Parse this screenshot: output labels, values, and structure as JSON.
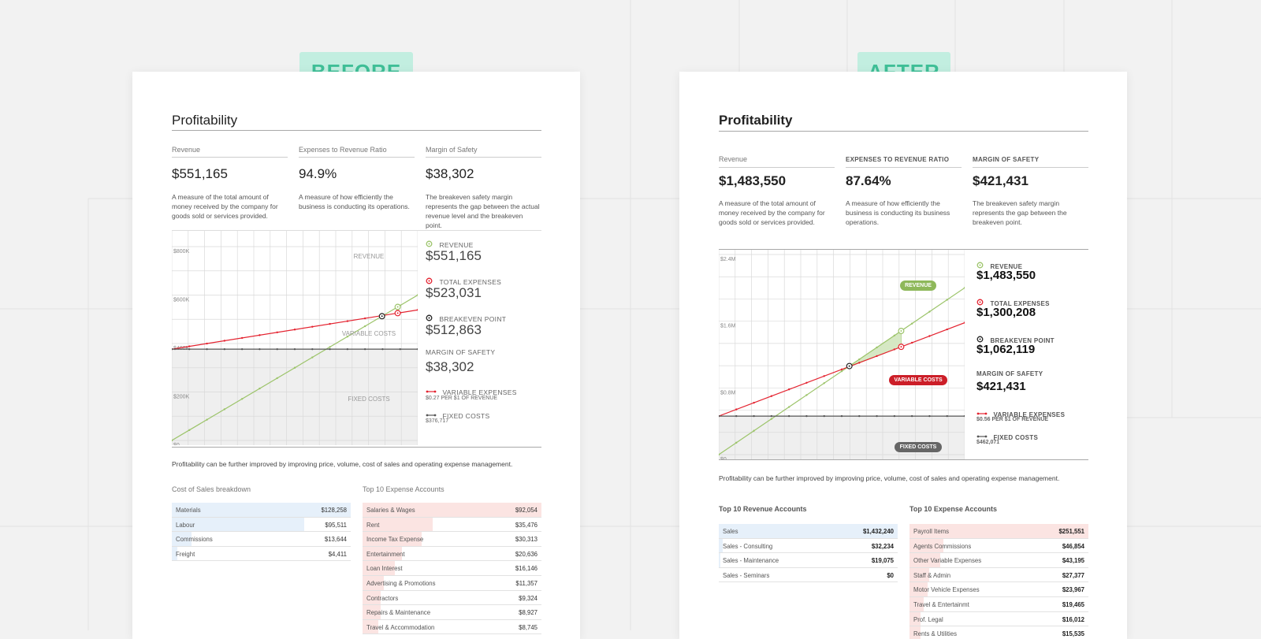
{
  "labels": {
    "before": "BEFORE",
    "after": "AFTER"
  },
  "before": {
    "title": "Profitability",
    "metrics": [
      {
        "head": "Revenue",
        "value": "$551,165",
        "desc": "A measure of the total amount of money received by the company for goods sold or services provided."
      },
      {
        "head": "Expenses to Revenue Ratio",
        "value": "94.9%",
        "desc": "A measure of how efficiently the business is conducting its operations."
      },
      {
        "head": "Margin of Safety",
        "value": "$38,302",
        "desc": "The breakeven safety margin represents the gap between the actual revenue level and the breakeven point."
      }
    ],
    "legend": {
      "revenue_label": "REVENUE",
      "revenue_value": "$551,165",
      "expenses_label": "TOTAL EXPENSES",
      "expenses_value": "$523,031",
      "breakeven_label": "BREAKEVEN POINT",
      "breakeven_value": "$512,863",
      "margin_label": "MARGIN OF SAFETY",
      "margin_value": "$38,302",
      "variable_label": "VARIABLE EXPENSES",
      "variable_sub": "$0.27 PER $1 OF REVENUE",
      "fixed_label": "FIXED COSTS",
      "fixed_sub": "$376,717"
    },
    "note": "Profitability can be further improved by improving price, volume, cost of sales and operating expense management.",
    "table_left": {
      "title": "Cost of Sales breakdown",
      "rows": [
        {
          "label": "Materials",
          "amount": "$128,258",
          "share": 1.0
        },
        {
          "label": "Labour",
          "amount": "$95,511",
          "share": 0.74
        },
        {
          "label": "Commissions",
          "amount": "$13,644",
          "share": 0.11
        },
        {
          "label": "Freight",
          "amount": "$4,411",
          "share": 0.03
        }
      ]
    },
    "table_right": {
      "title": "Top 10 Expense Accounts",
      "rows": [
        {
          "label": "Salaries & Wages",
          "amount": "$92,054",
          "share": 1.0
        },
        {
          "label": "Rent",
          "amount": "$35,476",
          "share": 0.39
        },
        {
          "label": "Income Tax Expense",
          "amount": "$30,313",
          "share": 0.33
        },
        {
          "label": "Entertainment",
          "amount": "$20,636",
          "share": 0.22
        },
        {
          "label": "Loan Interest",
          "amount": "$16,146",
          "share": 0.18
        },
        {
          "label": "Advertising & Promotions",
          "amount": "$11,357",
          "share": 0.12
        },
        {
          "label": "Contractors",
          "amount": "$9,324",
          "share": 0.1
        },
        {
          "label": "Repairs & Maintenance",
          "amount": "$8,927",
          "share": 0.1
        },
        {
          "label": "Travel & Accommodation",
          "amount": "$8,745",
          "share": 0.09
        }
      ]
    }
  },
  "after": {
    "title": "Profitability",
    "metrics": [
      {
        "head": "Revenue",
        "value": "$1,483,550",
        "desc": "A measure of the total amount of money received by the company for goods sold or services provided."
      },
      {
        "head": "EXPENSES TO REVENUE RATIO",
        "value": "87.64%",
        "desc": "A measure of how efficiently the business is conducting its business operations."
      },
      {
        "head": "MARGIN OF SAFETY",
        "value": "$421,431",
        "desc": "The breakeven safety margin represents the gap between the breakeven point."
      }
    ],
    "legend": {
      "revenue_label": "REVENUE",
      "revenue_value": "$1,483,550",
      "expenses_label": "TOTAL EXPENSES",
      "expenses_value": "$1,300,208",
      "breakeven_label": "BREAKEVEN POINT",
      "breakeven_value": "$1,062,119",
      "margin_label": "MARGIN OF SAFETY",
      "margin_value": "$421,431",
      "variable_label": "VARIABLE EXPENSES",
      "variable_sub": "$0.56 PER $1 OF REVENUE",
      "fixed_label": "FIXED COSTS",
      "fixed_sub": "$462,071"
    },
    "note": "Profitability can be further improved by improving price, volume, cost of sales and operating expense management.",
    "table_left": {
      "title": "Top 10 Revenue Accounts",
      "rows": [
        {
          "label": "Sales",
          "amount": "$1,432,240",
          "share": 1.0
        },
        {
          "label": "Sales - Consulting",
          "amount": "$32,234",
          "share": 0.02
        },
        {
          "label": "Sales - Maintenance",
          "amount": "$19,075",
          "share": 0.01
        },
        {
          "label": "Sales - Seminars",
          "amount": "$0",
          "share": 0.0
        }
      ]
    },
    "table_right": {
      "title": "Top 10 Expense Accounts",
      "rows": [
        {
          "label": "Payroll Items",
          "amount": "$251,551",
          "share": 1.0
        },
        {
          "label": "Agents Commissions",
          "amount": "$46,854",
          "share": 0.19
        },
        {
          "label": "Other Variable Expenses",
          "amount": "$43,195",
          "share": 0.17
        },
        {
          "label": "Staff & Admin",
          "amount": "$27,377",
          "share": 0.11
        },
        {
          "label": "Motor Vehicle Expenses",
          "amount": "$23,967",
          "share": 0.1
        },
        {
          "label": "Travel & Entertainmt",
          "amount": "$19,465",
          "share": 0.08
        },
        {
          "label": "Prof. Legal",
          "amount": "$16,012",
          "share": 0.06
        },
        {
          "label": "Rents & Utilities",
          "amount": "$15,535",
          "share": 0.06
        }
      ]
    }
  },
  "chart_data": [
    {
      "type": "line",
      "yticks": [
        "$800K",
        "$600K",
        "$400K",
        "$200K",
        "$0"
      ],
      "ylim": [
        0,
        800000
      ],
      "xlim": [
        0,
        600000
      ],
      "annotations": [
        "REVENUE",
        "VARIABLE COSTS",
        "FIXED COSTS"
      ],
      "series": [
        {
          "name": "REVENUE",
          "x": [
            0,
            600000
          ],
          "y": [
            0,
            600000
          ]
        },
        {
          "name": "TOTAL EXPENSES",
          "x": [
            0,
            600000
          ],
          "y": [
            376717,
            538717
          ]
        },
        {
          "name": "FIXED COSTS",
          "x": [
            0,
            600000
          ],
          "y": [
            376717,
            376717
          ]
        }
      ],
      "breakeven": [
        512863,
        512863
      ],
      "actual": {
        "revenue": 551165,
        "expenses": 523031
      }
    },
    {
      "type": "line",
      "yticks": [
        "$2.4M",
        "$1.6M",
        "$0.8M",
        "$0"
      ],
      "ylim": [
        0,
        2400000
      ],
      "xlim": [
        0,
        2000000
      ],
      "annotations": [
        "REVENUE",
        "VARIABLE COSTS",
        "FIXED COSTS"
      ],
      "series": [
        {
          "name": "REVENUE",
          "x": [
            0,
            2000000
          ],
          "y": [
            0,
            2000000
          ]
        },
        {
          "name": "TOTAL EXPENSES",
          "x": [
            0,
            2000000
          ],
          "y": [
            462071,
            1582071
          ]
        },
        {
          "name": "FIXED COSTS",
          "x": [
            0,
            2000000
          ],
          "y": [
            462071,
            462071
          ]
        }
      ],
      "breakeven": [
        1062119,
        1062119
      ],
      "actual": {
        "revenue": 1483550,
        "expenses": 1300208
      }
    }
  ],
  "colors": {
    "revenue": "#9cc46a",
    "expenses": "#e4222f",
    "fixed": "#555555",
    "tag_bg": "#c2eee0",
    "tag_text": "#3fbf97",
    "pill_revenue": "#8eb85a",
    "pill_variable": "#cc1e28",
    "pill_fixed": "#666666"
  }
}
